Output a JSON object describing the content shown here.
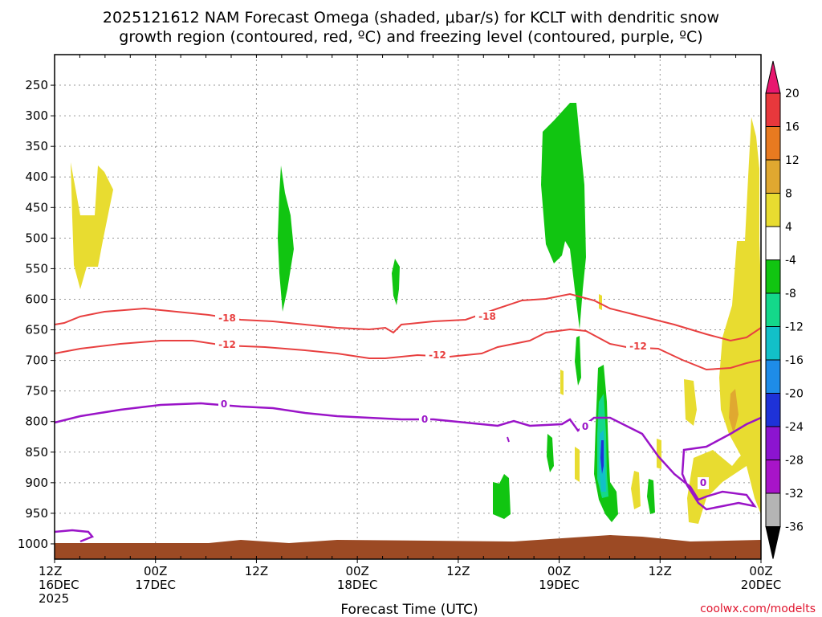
{
  "title": {
    "line1": "2025121612 NAM Forecast Omega (shaded, μbar/s) for KCLT with dendritic snow",
    "line2": "growth region (contoured, red, ºC) and freezing level (contoured, purple, ºC)"
  },
  "credit": "coolwx.com/modelts",
  "chart_data": {
    "type": "heatmap",
    "xlabel": "Forecast Time (UTC)",
    "ylabel": "",
    "x_range_hours": [
      0,
      84
    ],
    "x_ticks": [
      {
        "hours": 0,
        "label": [
          "12Z",
          "16DEC",
          "2025"
        ]
      },
      {
        "hours": 12,
        "label": [
          "00Z",
          "17DEC"
        ]
      },
      {
        "hours": 24,
        "label": [
          "12Z"
        ]
      },
      {
        "hours": 36,
        "label": [
          "00Z",
          "18DEC"
        ]
      },
      {
        "hours": 48,
        "label": [
          "12Z"
        ]
      },
      {
        "hours": 60,
        "label": [
          "00Z",
          "19DEC"
        ]
      },
      {
        "hours": 72,
        "label": [
          "12Z"
        ]
      },
      {
        "hours": 84,
        "label": [
          "00Z",
          "20DEC"
        ]
      }
    ],
    "y_pressure_levels": [
      250,
      300,
      350,
      400,
      450,
      500,
      550,
      600,
      650,
      700,
      750,
      800,
      850,
      900,
      950,
      1000
    ],
    "y_range_mb": [
      200,
      1025
    ],
    "grid": true,
    "colorbar": {
      "labels": [
        "20",
        "16",
        "12",
        "8",
        "4",
        "-4",
        "-8",
        "-12",
        "-16",
        "-20",
        "-24",
        "-28",
        "-32",
        "-36"
      ],
      "colors": [
        "#e8176f",
        "#e8383c",
        "#e87a20",
        "#e0a830",
        "#e8dc30",
        "#ffffff",
        "#11c511",
        "#14d88a",
        "#12c0c8",
        "#1e8ce8",
        "#1e32d8",
        "#8c14d0",
        "#a814c8",
        "#b4b4b4",
        "#000000"
      ]
    },
    "contours": {
      "dendritic_minus18": {
        "label": "-18",
        "color": "#e84040"
      },
      "dendritic_minus12": {
        "label": "-12",
        "color": "#e84040"
      },
      "freezing_0": {
        "label": "0",
        "color": "#9a14c8"
      }
    },
    "omega_regions": [
      {
        "name": "positive omega, 16DEC 12Z-18Z",
        "category": "4 to 8",
        "color": "#e8dc30"
      },
      {
        "name": "negative omega, 17DEC 12Z",
        "category": "-4 to -8",
        "color": "#11c511"
      },
      {
        "name": "negative omega, 18DEC 00Z-06Z",
        "category": "-4 to -8",
        "color": "#11c511"
      },
      {
        "name": "negative omega, 19DEC 00Z",
        "category": "-4 to -8",
        "color": "#11c511"
      },
      {
        "name": "negative omega core, 19DEC 06Z",
        "category": "-8 to -24",
        "color": "#12c0c8"
      },
      {
        "name": "positive omega, 19DEC 18Z-20DEC 00Z",
        "category": "4 to 12",
        "color": "#e8dc30"
      }
    ],
    "terrain_color": "#9c4a24"
  }
}
